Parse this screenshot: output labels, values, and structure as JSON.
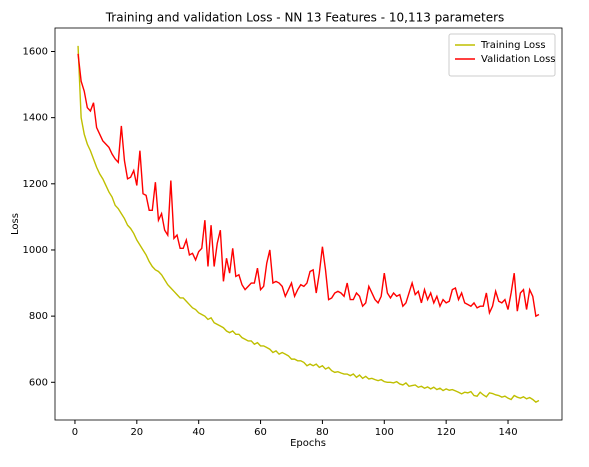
{
  "chart_data": {
    "type": "line",
    "title": "Training and validation Loss - NN 13 Features - 10,113 parameters",
    "xlabel": "Epochs",
    "ylabel": "Loss",
    "x": [
      1,
      2,
      3,
      4,
      5,
      6,
      7,
      8,
      9,
      10,
      11,
      12,
      13,
      14,
      15,
      16,
      17,
      18,
      19,
      20,
      21,
      22,
      23,
      24,
      25,
      26,
      27,
      28,
      29,
      30,
      31,
      32,
      33,
      34,
      35,
      36,
      37,
      38,
      39,
      40,
      41,
      42,
      43,
      44,
      45,
      46,
      47,
      48,
      49,
      50,
      51,
      52,
      53,
      54,
      55,
      56,
      57,
      58,
      59,
      60,
      61,
      62,
      63,
      64,
      65,
      66,
      67,
      68,
      69,
      70,
      71,
      72,
      73,
      74,
      75,
      76,
      77,
      78,
      79,
      80,
      81,
      82,
      83,
      84,
      85,
      86,
      87,
      88,
      89,
      90,
      91,
      92,
      93,
      94,
      95,
      96,
      97,
      98,
      99,
      100,
      101,
      102,
      103,
      104,
      105,
      106,
      107,
      108,
      109,
      110,
      111,
      112,
      113,
      114,
      115,
      116,
      117,
      118,
      119,
      120,
      121,
      122,
      123,
      124,
      125,
      126,
      127,
      128,
      129,
      130,
      131,
      132,
      133,
      134,
      135,
      136,
      137,
      138,
      139,
      140,
      141,
      142,
      143,
      144,
      145,
      146,
      147,
      148,
      149,
      150
    ],
    "series": [
      {
        "name": "Training Loss",
        "color": "#bfbf00",
        "values": [
          1617,
          1400,
          1350,
          1320,
          1300,
          1275,
          1250,
          1230,
          1215,
          1195,
          1175,
          1160,
          1135,
          1125,
          1110,
          1095,
          1075,
          1065,
          1050,
          1030,
          1015,
          1000,
          985,
          965,
          950,
          940,
          935,
          925,
          910,
          895,
          885,
          875,
          865,
          855,
          855,
          845,
          835,
          825,
          820,
          810,
          805,
          800,
          790,
          795,
          780,
          775,
          770,
          765,
          755,
          750,
          755,
          745,
          745,
          735,
          730,
          725,
          725,
          715,
          720,
          710,
          710,
          705,
          700,
          690,
          695,
          685,
          690,
          685,
          680,
          670,
          670,
          665,
          665,
          660,
          650,
          655,
          650,
          655,
          645,
          650,
          640,
          645,
          635,
          630,
          632,
          628,
          625,
          625,
          620,
          625,
          615,
          622,
          612,
          618,
          610,
          612,
          608,
          605,
          608,
          602,
          600,
          600,
          598,
          602,
          595,
          592,
          598,
          588,
          590,
          592,
          585,
          588,
          582,
          586,
          580,
          585,
          578,
          582,
          575,
          580,
          576,
          578,
          574,
          570,
          565,
          570,
          568,
          572,
          560,
          558,
          570,
          562,
          556,
          568,
          566,
          562,
          560,
          555,
          558,
          552,
          548,
          560,
          555,
          552,
          556,
          550,
          554,
          548,
          540,
          545
        ]
      },
      {
        "name": "Validation Loss",
        "color": "#ff0000",
        "values": [
          1593,
          1510,
          1480,
          1430,
          1420,
          1445,
          1370,
          1350,
          1330,
          1320,
          1310,
          1290,
          1275,
          1265,
          1375,
          1270,
          1215,
          1220,
          1240,
          1195,
          1300,
          1170,
          1165,
          1120,
          1120,
          1205,
          1090,
          1110,
          1060,
          1045,
          1210,
          1035,
          1045,
          1005,
          1005,
          1030,
          985,
          990,
          970,
          995,
          1005,
          1090,
          950,
          1075,
          950,
          1020,
          1060,
          905,
          975,
          930,
          1005,
          920,
          925,
          895,
          880,
          890,
          900,
          900,
          945,
          880,
          890,
          960,
          1000,
          900,
          905,
          900,
          890,
          860,
          880,
          900,
          860,
          880,
          895,
          890,
          900,
          935,
          940,
          870,
          930,
          1010,
          940,
          850,
          855,
          870,
          875,
          870,
          860,
          900,
          850,
          850,
          870,
          860,
          830,
          840,
          890,
          870,
          850,
          840,
          860,
          930,
          870,
          855,
          870,
          860,
          865,
          830,
          840,
          870,
          900,
          865,
          875,
          840,
          880,
          850,
          870,
          840,
          860,
          830,
          850,
          840,
          845,
          880,
          885,
          850,
          870,
          840,
          835,
          830,
          840,
          825,
          830,
          830,
          870,
          810,
          830,
          875,
          845,
          840,
          850,
          820,
          870,
          930,
          815,
          870,
          880,
          820,
          880,
          860,
          800,
          805
        ]
      }
    ],
    "xlim": [
      -6.45,
      157.45
    ],
    "ylim": [
      486,
      1671
    ],
    "xticks": [
      0,
      20,
      40,
      60,
      80,
      100,
      120,
      140
    ],
    "yticks": [
      600,
      800,
      1000,
      1200,
      1400,
      1600
    ],
    "legend": "upper right"
  }
}
